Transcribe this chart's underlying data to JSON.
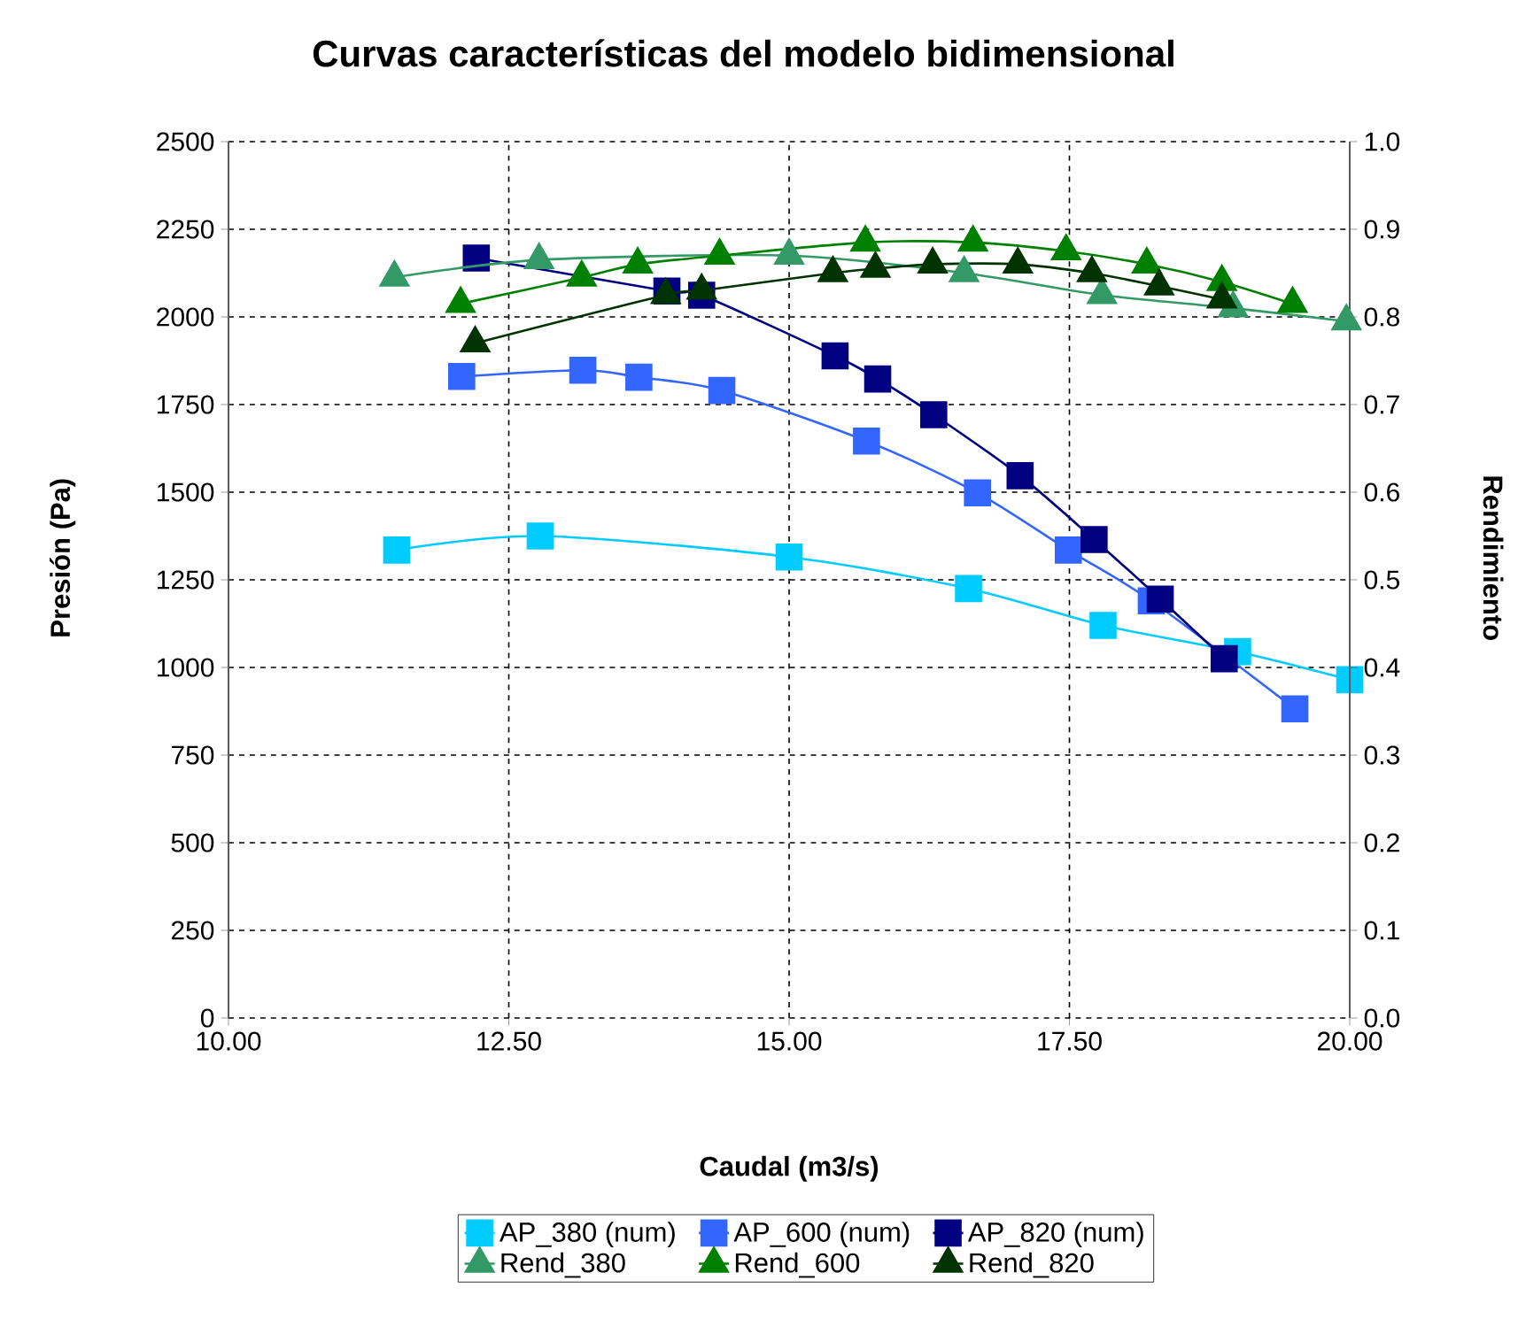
{
  "chart_data": {
    "type": "line",
    "title": "Curvas características del modelo bidimensional",
    "xlabel": "Caudal (m3/s)",
    "ylabel": "Presión (Pa)",
    "y2label": "Rendimiento",
    "xlim": [
      10,
      20
    ],
    "xticks": [
      {
        "value": 10,
        "label": "10.00"
      },
      {
        "value": 12.5,
        "label": "12.50"
      },
      {
        "value": 15,
        "label": "15.00"
      },
      {
        "value": 17.5,
        "label": "17.50"
      },
      {
        "value": 20,
        "label": "20.00"
      }
    ],
    "ylim": [
      0,
      2500
    ],
    "yticks": [
      0,
      250,
      500,
      750,
      1000,
      1250,
      1500,
      1750,
      2000,
      2250,
      2500
    ],
    "y2lim": [
      0,
      1
    ],
    "y2ticks": [
      {
        "value": 0,
        "label": "0.0"
      },
      {
        "value": 0.1,
        "label": "0.1"
      },
      {
        "value": 0.2,
        "label": "0.2"
      },
      {
        "value": 0.3,
        "label": "0.3"
      },
      {
        "value": 0.4,
        "label": "0.4"
      },
      {
        "value": 0.5,
        "label": "0.5"
      },
      {
        "value": 0.6,
        "label": "0.6"
      },
      {
        "value": 0.7,
        "label": "0.7"
      },
      {
        "value": 0.8,
        "label": "0.8"
      },
      {
        "value": 0.9,
        "label": "0.9"
      },
      {
        "value": 1,
        "label": "1.0"
      }
    ],
    "grid": true,
    "legend": "bottom",
    "series": [
      {
        "name": "AP_380 (num)",
        "color": "#00ccff",
        "marker": "square",
        "x": [
          11.5,
          12.78,
          15.0,
          16.6,
          17.8,
          19.0,
          20.0
        ],
        "values": [
          1335,
          1375,
          1315,
          1225,
          1120,
          1045,
          965
        ]
      },
      {
        "name": "AP_600 (num)",
        "color": "#3366ff",
        "marker": "square",
        "x": [
          12.08,
          13.16,
          13.66,
          14.4,
          15.69,
          16.68,
          17.49,
          18.23,
          19.51
        ],
        "values": [
          1830,
          1848,
          1828,
          1790,
          1646,
          1498,
          1335,
          1190,
          882
        ]
      },
      {
        "name": "AP_820 (num)",
        "color": "#000080",
        "marker": "square",
        "x": [
          12.21,
          13.91,
          14.22,
          15.41,
          15.79,
          16.29,
          17.06,
          17.72,
          18.31,
          18.88
        ],
        "values": [
          2168,
          2074,
          2062,
          1889,
          1823,
          1721,
          1547,
          1365,
          1195,
          1025
        ]
      },
      {
        "name": "Rend_380",
        "color": "#339966",
        "marker": "triangle",
        "axis": "y2",
        "x": [
          11.48,
          12.77,
          15.0,
          16.56,
          17.79,
          18.96,
          19.97
        ],
        "values": [
          0.845,
          0.865,
          0.87,
          0.85,
          0.825,
          0.81,
          0.795
        ]
      },
      {
        "name": "Rend_600",
        "color": "#008000",
        "marker": "triangle",
        "axis": "y2",
        "x": [
          12.07,
          13.15,
          13.65,
          14.38,
          15.68,
          16.64,
          17.47,
          18.19,
          18.86,
          19.49
        ],
        "values": [
          0.815,
          0.845,
          0.86,
          0.87,
          0.885,
          0.885,
          0.875,
          0.86,
          0.84,
          0.815
        ]
      },
      {
        "name": "Rend_820",
        "color": "#003300",
        "marker": "triangle",
        "axis": "y2",
        "x": [
          12.2,
          13.9,
          14.22,
          15.39,
          15.77,
          16.28,
          17.04,
          17.7,
          18.3,
          18.86
        ],
        "values": [
          0.77,
          0.825,
          0.83,
          0.85,
          0.855,
          0.86,
          0.86,
          0.85,
          0.835,
          0.82
        ]
      }
    ]
  }
}
